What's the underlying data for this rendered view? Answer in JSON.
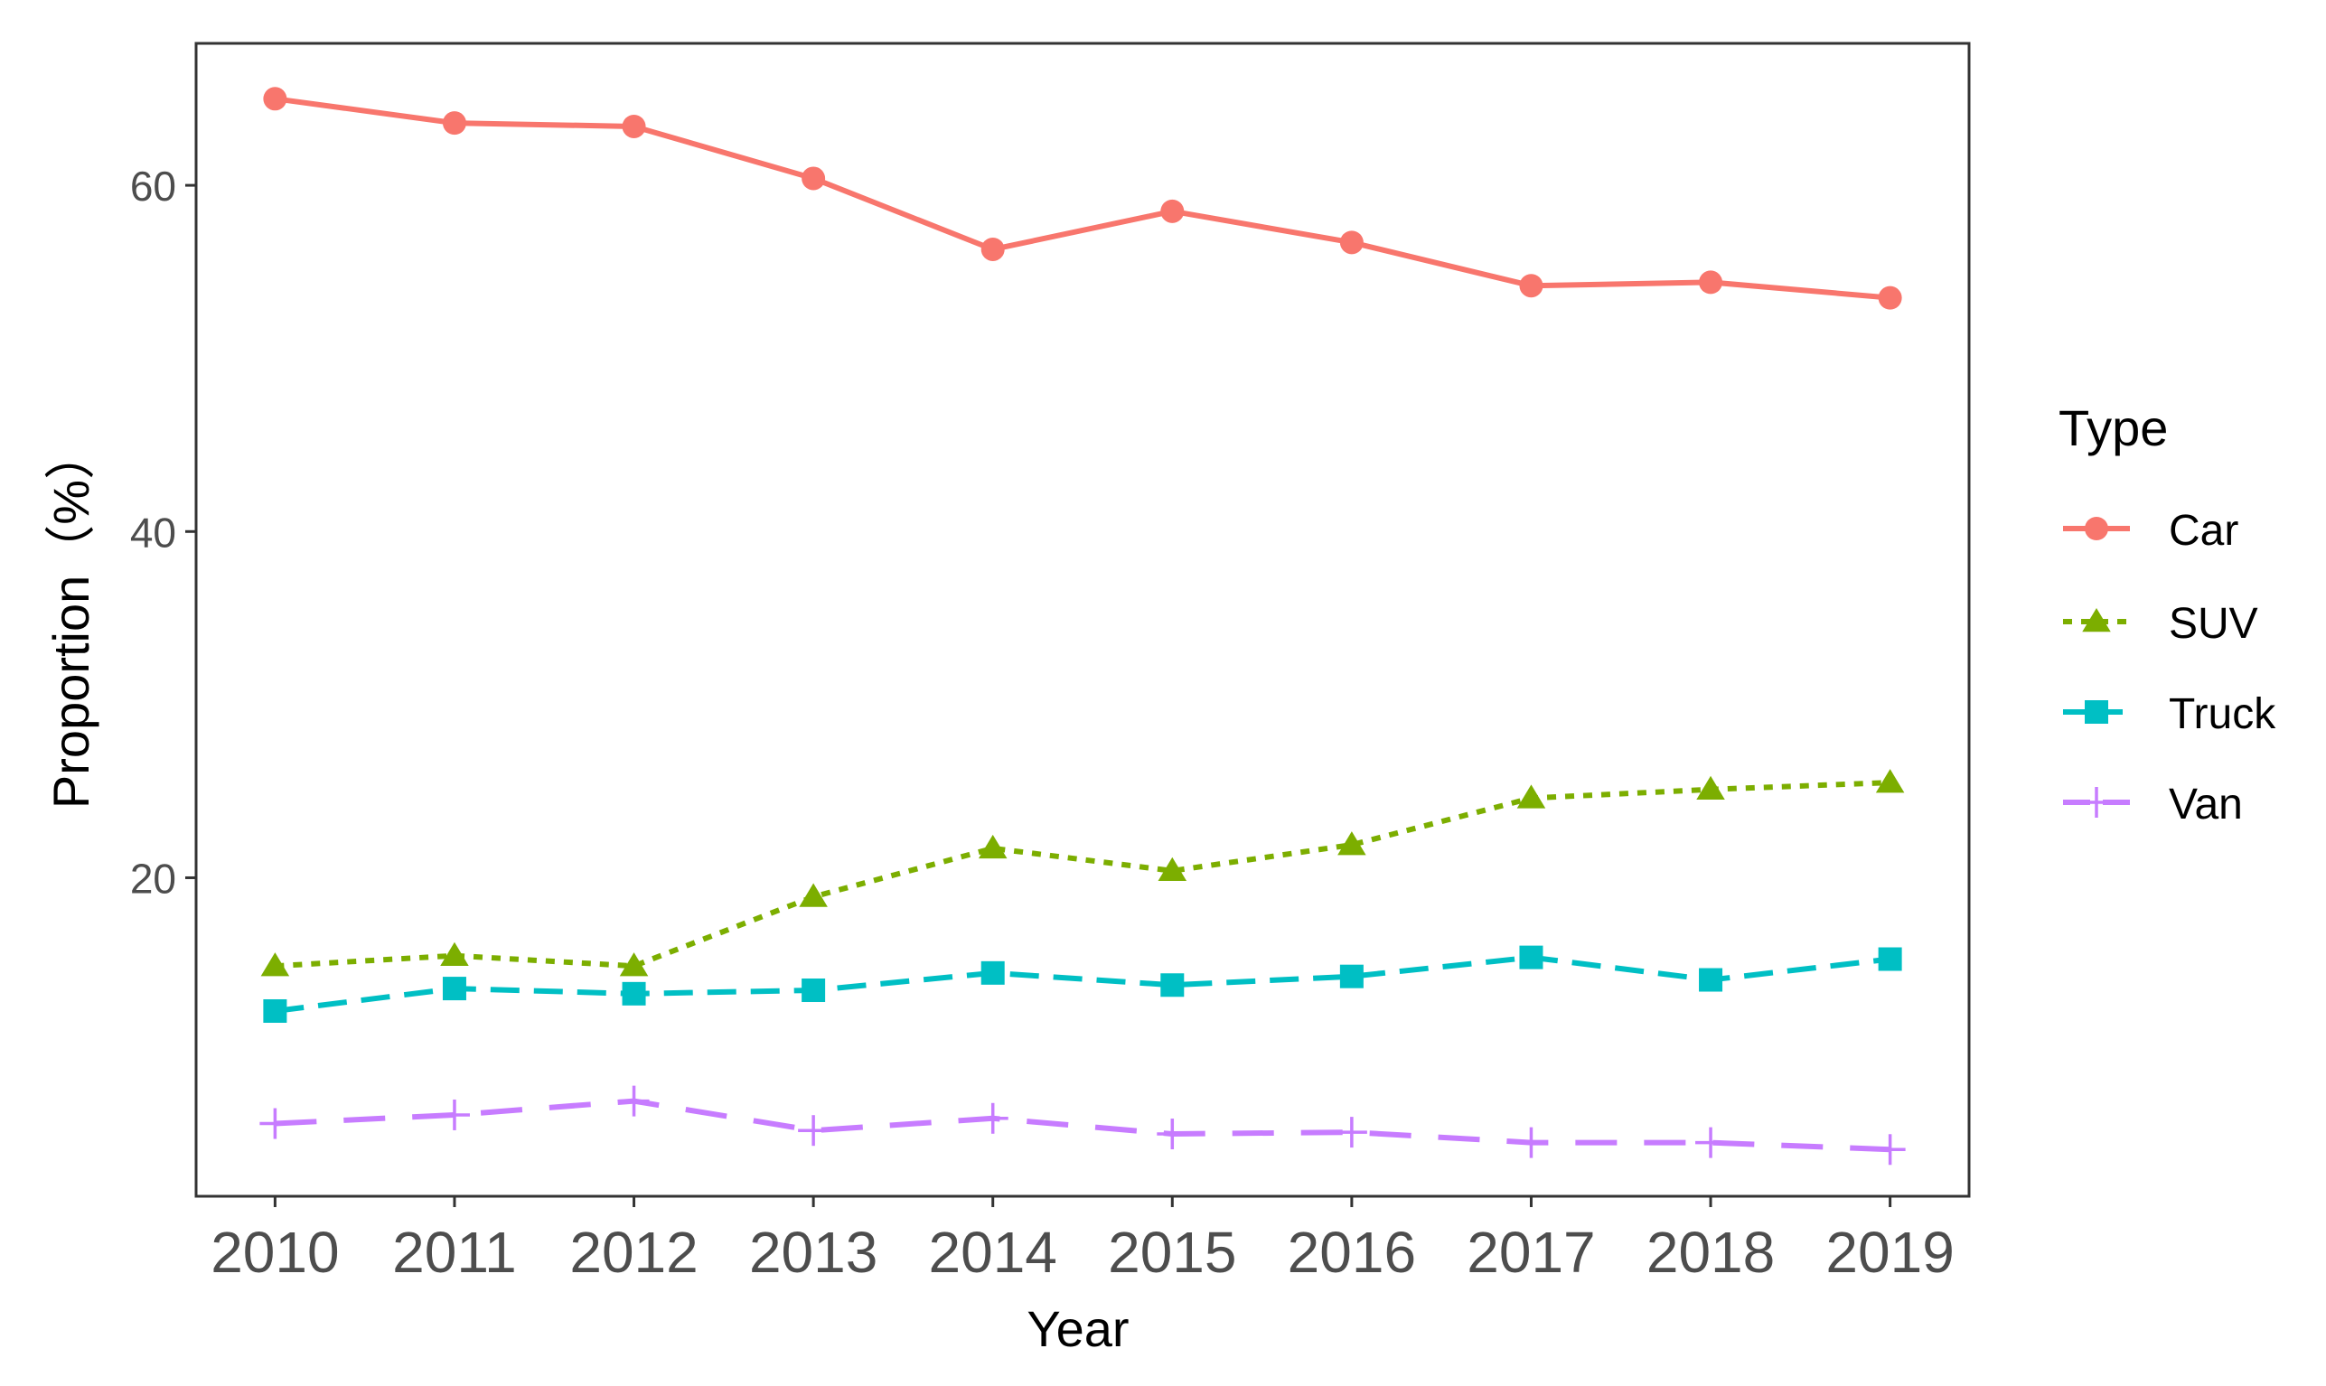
{
  "chart_data": {
    "type": "line",
    "title": "",
    "xlabel": "Year",
    "ylabel": "Proportion（%）",
    "x": [
      2010,
      2011,
      2012,
      2013,
      2014,
      2015,
      2016,
      2017,
      2018,
      2019
    ],
    "x_tick_labels": [
      "2010",
      "2011",
      "2012",
      "2013",
      "2014",
      "2015",
      "2016",
      "2017",
      "2018",
      "2019"
    ],
    "y_ticks": [
      20,
      40,
      60
    ],
    "y_tick_labels": [
      "20",
      "40",
      "60"
    ],
    "xlim": [
      2009.56,
      2019.44
    ],
    "ylim": [
      1.6,
      68.2
    ],
    "grid": false,
    "legend": {
      "title": "Type",
      "position": "right"
    },
    "series": [
      {
        "name": "Car",
        "color": "#F8766D",
        "marker": "circle",
        "dash": "solid",
        "values": [
          65.0,
          63.6,
          63.4,
          60.4,
          56.3,
          58.5,
          56.7,
          54.2,
          54.4,
          53.5
        ]
      },
      {
        "name": "SUV",
        "color": "#7CAE00",
        "marker": "triangle",
        "dash": "dotted",
        "values": [
          14.9,
          15.5,
          14.9,
          18.9,
          21.7,
          20.4,
          21.9,
          24.6,
          25.1,
          25.5
        ]
      },
      {
        "name": "Truck",
        "color": "#00BFC4",
        "marker": "square",
        "dash": "dashed",
        "values": [
          12.3,
          13.6,
          13.3,
          13.5,
          14.5,
          13.8,
          14.3,
          15.4,
          14.1,
          15.3
        ]
      },
      {
        "name": "Van",
        "color": "#C77CFF",
        "marker": "plus",
        "dash": "longdash",
        "values": [
          5.8,
          6.3,
          7.1,
          5.4,
          6.1,
          5.2,
          5.3,
          4.7,
          4.7,
          4.3
        ]
      }
    ]
  }
}
